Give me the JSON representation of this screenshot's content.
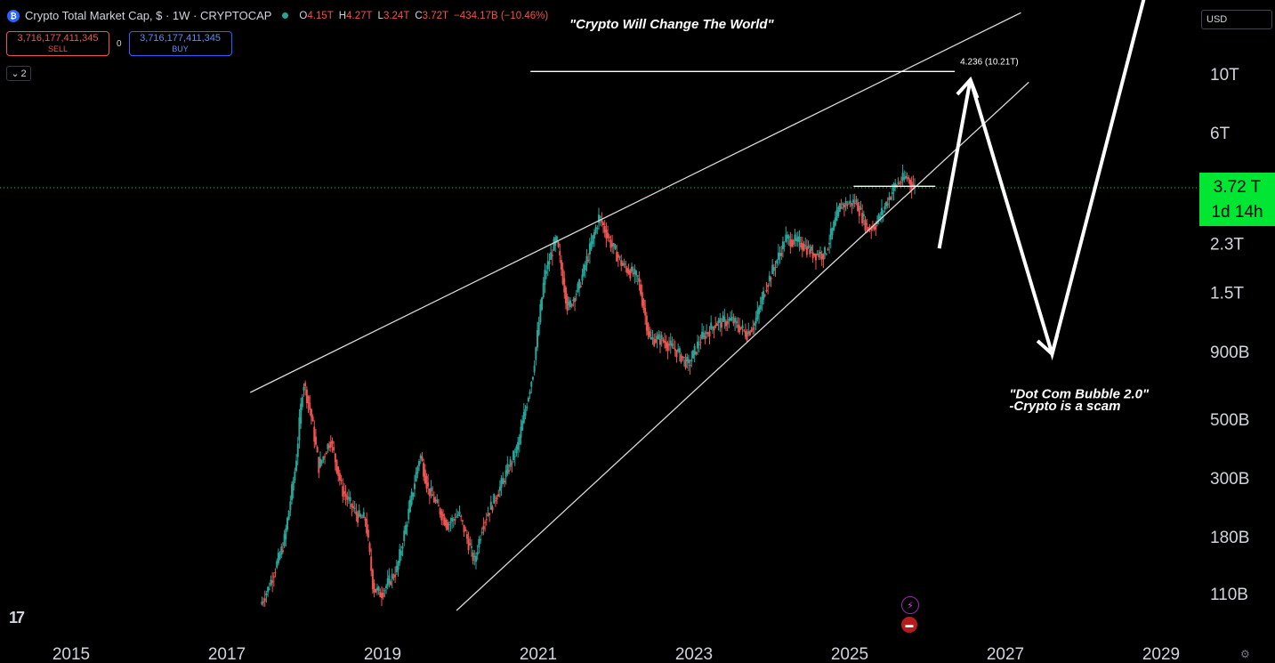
{
  "header": {
    "logo": "tradingview-symbol-icon",
    "title": "Crypto Total Market Cap, $ · 1W · CRYPTOCAP",
    "ohlc": [
      {
        "k": "O",
        "v": "4.15T"
      },
      {
        "k": "H",
        "v": "4.27T"
      },
      {
        "k": "L",
        "v": "3.24T"
      },
      {
        "k": "C",
        "v": "3.72T"
      },
      {
        "k": "",
        "v": "−434.17B (−10.46%)"
      }
    ]
  },
  "trade": {
    "sell_value": "3,716,177,411,345",
    "sell_label": "SELL",
    "spread": "0",
    "buy_value": "3,716,177,411,345",
    "buy_label": "BUY"
  },
  "indicators_count": "2",
  "currency": "USD",
  "price_tag": {
    "price": "3.72 T",
    "countdown": "1d 14h"
  },
  "colors": {
    "up": "#26a69a",
    "down": "#ef5350",
    "price": "#00e632",
    "annotation": "#ffffff"
  },
  "chart_data": {
    "type": "candlestick",
    "symbol": "CRYPTOCAP",
    "interval": "1W",
    "x_ticks": [
      "2015",
      "2017",
      "2019",
      "2021",
      "2023",
      "2025",
      "2027",
      "2029"
    ],
    "y_ticks": [
      "10T",
      "6T",
      "3.72 T",
      "2.3T",
      "1.5T",
      "900B",
      "500B",
      "300B",
      "180B",
      "110B"
    ],
    "y_scale": "log",
    "y_tick_values_billion": [
      10000,
      6000,
      2300,
      1500,
      900,
      500,
      300,
      180,
      110
    ],
    "current_price_billion": 3720,
    "series_path_billion": [
      [
        2017.45,
        100
      ],
      [
        2017.55,
        115
      ],
      [
        2017.75,
        170
      ],
      [
        2017.9,
        330
      ],
      [
        2018.0,
        700
      ],
      [
        2018.1,
        520
      ],
      [
        2018.2,
        330
      ],
      [
        2018.35,
        420
      ],
      [
        2018.5,
        270
      ],
      [
        2018.7,
        215
      ],
      [
        2018.8,
        210
      ],
      [
        2018.9,
        115
      ],
      [
        2019.0,
        110
      ],
      [
        2019.2,
        135
      ],
      [
        2019.35,
        220
      ],
      [
        2019.5,
        370
      ],
      [
        2019.6,
        275
      ],
      [
        2019.85,
        200
      ],
      [
        2020.0,
        220
      ],
      [
        2020.2,
        145
      ],
      [
        2020.3,
        200
      ],
      [
        2020.5,
        265
      ],
      [
        2020.75,
        390
      ],
      [
        2020.95,
        750
      ],
      [
        2021.1,
        1750
      ],
      [
        2021.25,
        2400
      ],
      [
        2021.4,
        1300
      ],
      [
        2021.55,
        1600
      ],
      [
        2021.8,
        2900
      ],
      [
        2021.95,
        2300
      ],
      [
        2022.1,
        1900
      ],
      [
        2022.3,
        1700
      ],
      [
        2022.45,
        1000
      ],
      [
        2022.6,
        1000
      ],
      [
        2022.8,
        900
      ],
      [
        2022.95,
        800
      ],
      [
        2023.1,
        1000
      ],
      [
        2023.3,
        1150
      ],
      [
        2023.5,
        1180
      ],
      [
        2023.7,
        1050
      ],
      [
        2023.8,
        1150
      ],
      [
        2023.95,
        1600
      ],
      [
        2024.2,
        2400
      ],
      [
        2024.4,
        2300
      ],
      [
        2024.55,
        2100
      ],
      [
        2024.7,
        2100
      ],
      [
        2024.9,
        3200
      ],
      [
        2025.1,
        3300
      ],
      [
        2025.25,
        2600
      ],
      [
        2025.35,
        2700
      ],
      [
        2025.5,
        3300
      ],
      [
        2025.6,
        3800
      ],
      [
        2025.75,
        4100
      ],
      [
        2025.85,
        3720
      ]
    ],
    "trendlines": [
      {
        "from": [
          2017.3,
          630
        ],
        "to": [
          2027.2,
          17000
        ]
      },
      {
        "from": [
          2019.95,
          95
        ],
        "to": [
          2027.3,
          9300
        ]
      }
    ],
    "horizontal_levels": [
      {
        "label": "4.236 (10.21T)",
        "from": 2020.9,
        "to": 2026.35,
        "y": 10210
      },
      {
        "label": "",
        "from": 2025.05,
        "to": 2026.1,
        "y": 3770
      }
    ],
    "projection_path": [
      [
        2026.15,
        2200
      ],
      [
        2026.55,
        9500
      ],
      [
        2027.6,
        880
      ],
      [
        2028.95,
        30000
      ]
    ],
    "annotations": [
      {
        "text": "\"Crypto Will Change The World\"",
        "x": 2021.4,
        "y": 14800
      },
      {
        "text": "\"Dot Com Bubble 2.0\"",
        "x": 2027.05,
        "y": 600
      },
      {
        "text": "-Crypto is a scam",
        "x": 2027.05,
        "y": 540
      }
    ]
  }
}
